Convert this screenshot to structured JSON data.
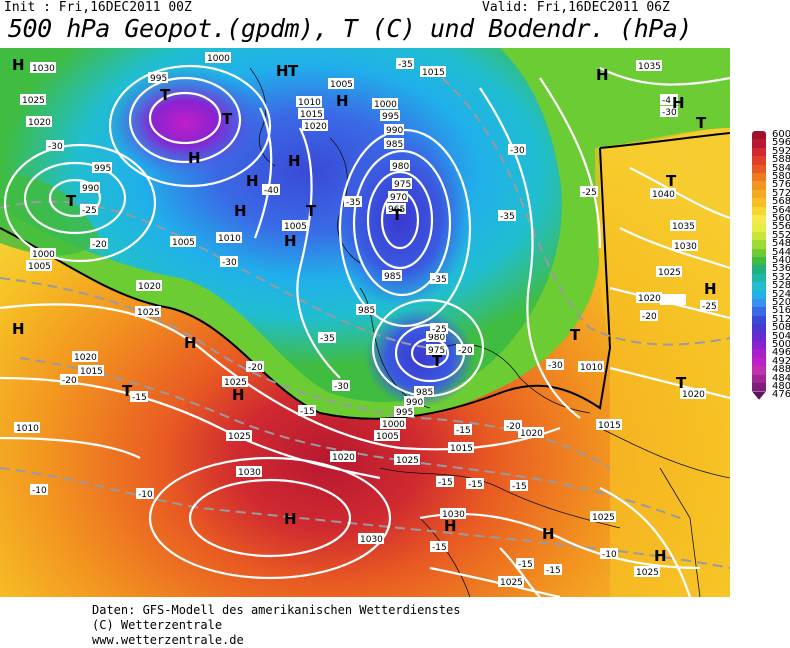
{
  "header": {
    "init": "Init : Fri,16DEC2011 00Z",
    "valid": "Valid: Fri,16DEC2011 06Z",
    "title": "500 hPa Geopot.(gpdm), T (C) und Bodendr. (hPa)"
  },
  "credits": {
    "line1": "Daten: GFS-Modell des amerikanischen Wetterdienstes",
    "line2": "(C) Wetterzentrale",
    "line3": "www.wetterzentrale.de"
  },
  "legend": {
    "values": [
      600,
      596,
      592,
      588,
      584,
      580,
      576,
      572,
      568,
      564,
      560,
      556,
      552,
      548,
      544,
      540,
      536,
      532,
      528,
      524,
      520,
      516,
      512,
      508,
      504,
      500,
      496,
      492,
      488,
      484,
      480,
      476
    ],
    "colors": [
      "#a0102a",
      "#b81830",
      "#d02a30",
      "#e0402a",
      "#e85a22",
      "#ee7a1e",
      "#f29420",
      "#f4aa22",
      "#f6c024",
      "#f8d630",
      "#f8e84a",
      "#e8ee40",
      "#c8e638",
      "#9cdc34",
      "#6ccc34",
      "#40bc40",
      "#24b07a",
      "#20b6a8",
      "#20bed0",
      "#20b0ea",
      "#3a90ee",
      "#3a6ae6",
      "#3a4ad6",
      "#4a38d0",
      "#6a2ad0",
      "#8a22d0",
      "#a820cc",
      "#c020c8",
      "#c030b0",
      "#a02890",
      "#801c7a",
      "#5a1460"
    ]
  },
  "map": {
    "pressure_labels": [
      "1030",
      "1025",
      "1020",
      "1015",
      "1010",
      "1005",
      "1000",
      "995",
      "990",
      "985",
      "980",
      "975",
      "970",
      "965",
      "1035",
      "1040"
    ],
    "temp_labels": [
      "-35",
      "-30",
      "-25",
      "-20",
      "-15",
      "-10",
      "-4"
    ],
    "markers": [
      "H",
      "T"
    ]
  }
}
